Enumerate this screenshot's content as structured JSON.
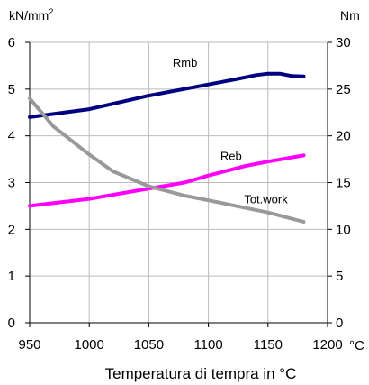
{
  "chart_data": {
    "type": "line",
    "xlabel": "Temperatura di tempra in °C",
    "x_unit": "°C",
    "y_left_unit": "kN/mm",
    "y_left_unit_sup": "2",
    "y_right_unit": "Nm",
    "xlim": [
      950,
      1200
    ],
    "x_ticks": [
      "950",
      "1000",
      "1050",
      "1100",
      "1150",
      "1200"
    ],
    "ylim_left": [
      0,
      6
    ],
    "y_left_ticks": [
      "0",
      "1",
      "2",
      "3",
      "4",
      "5",
      "6"
    ],
    "ylim_right": [
      0,
      30
    ],
    "y_right_ticks": [
      "0",
      "5",
      "10",
      "15",
      "20",
      "25",
      "30"
    ],
    "grid": true,
    "colors": {
      "Rmb": "#000080",
      "Reb": "#ff00ff",
      "Tot.work": "#999999",
      "grid": "#bbbbbb"
    },
    "series": [
      {
        "name": "Rmb",
        "axis": "left",
        "x": [
          950,
          1000,
          1050,
          1100,
          1125,
          1140,
          1150,
          1160,
          1170,
          1180
        ],
        "y": [
          4.4,
          4.57,
          4.86,
          5.1,
          5.22,
          5.3,
          5.33,
          5.33,
          5.28,
          5.27
        ]
      },
      {
        "name": "Reb",
        "axis": "left",
        "x": [
          950,
          1000,
          1050,
          1080,
          1100,
          1130,
          1150,
          1180
        ],
        "y": [
          2.5,
          2.65,
          2.87,
          3.0,
          3.15,
          3.35,
          3.45,
          3.58
        ]
      },
      {
        "name": "Tot.work",
        "axis": "right",
        "x": [
          950,
          970,
          1000,
          1020,
          1050,
          1080,
          1100,
          1150,
          1180
        ],
        "y": [
          24.0,
          21.0,
          18.0,
          16.2,
          14.6,
          13.6,
          13.1,
          11.8,
          10.8
        ]
      }
    ]
  }
}
